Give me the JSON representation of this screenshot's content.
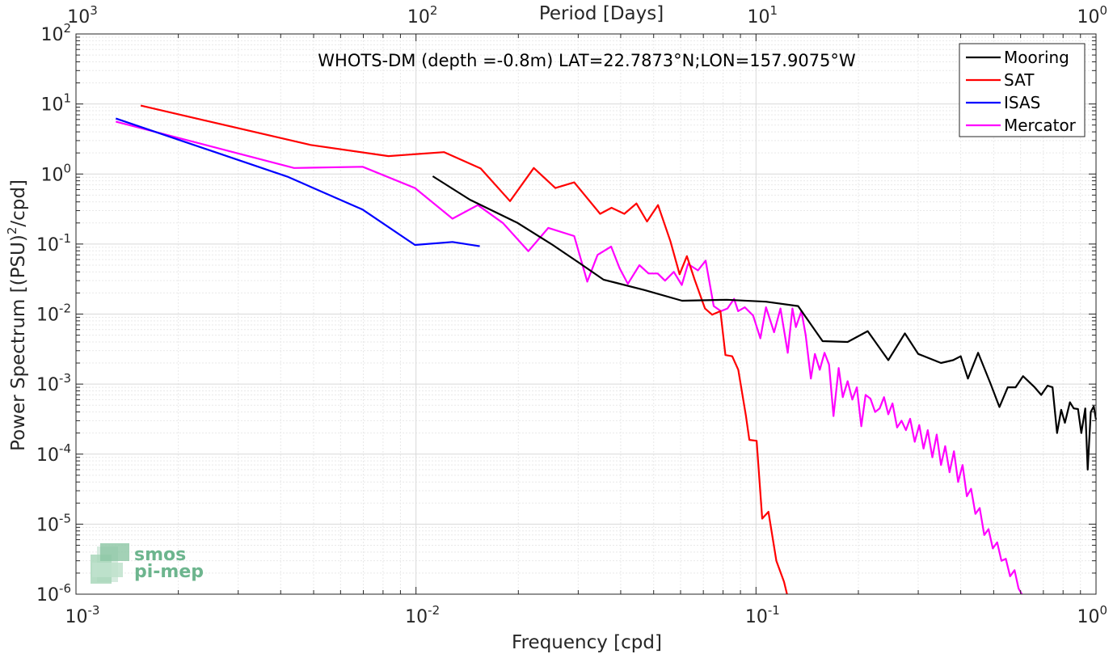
{
  "chart_data": {
    "type": "line",
    "title": "WHOTS-DM (depth =-0.8m) LAT=22.7873°N;LON=157.9075°W",
    "xlabel": "Frequency [cpd]",
    "ylabel": "Power Spectrum [(PSU)",
    "ylabel_sup": "2",
    "ylabel_tail": "/cpd]",
    "top_xlabel": "Period [Days]",
    "xscale": "log",
    "yscale": "log",
    "xlim": [
      0.001,
      1
    ],
    "ylim": [
      1e-06,
      100
    ],
    "grid": true,
    "legend_position": "top-right",
    "x_ticks": [
      {
        "base": "10",
        "exp": "-3",
        "value": 0.001
      },
      {
        "base": "10",
        "exp": "-2",
        "value": 0.01
      },
      {
        "base": "10",
        "exp": "-1",
        "value": 0.1
      },
      {
        "base": "10",
        "exp": "0",
        "value": 1
      }
    ],
    "top_ticks": [
      {
        "base": "10",
        "exp": "3",
        "value": 0.001
      },
      {
        "base": "10",
        "exp": "2",
        "value": 0.01
      },
      {
        "base": "10",
        "exp": "1",
        "value": 0.1
      },
      {
        "base": "10",
        "exp": "0",
        "value": 1
      }
    ],
    "y_ticks": [
      {
        "base": "10",
        "exp": "2",
        "value": 100
      },
      {
        "base": "10",
        "exp": "1",
        "value": 10
      },
      {
        "base": "10",
        "exp": "0",
        "value": 1
      },
      {
        "base": "10",
        "exp": "-1",
        "value": 0.1
      },
      {
        "base": "10",
        "exp": "-2",
        "value": 0.01
      },
      {
        "base": "10",
        "exp": "-3",
        "value": 0.001
      },
      {
        "base": "10",
        "exp": "-4",
        "value": 0.0001
      },
      {
        "base": "10",
        "exp": "-5",
        "value": 1e-05
      },
      {
        "base": "10",
        "exp": "-6",
        "value": 1e-06
      }
    ],
    "series": [
      {
        "name": "Mooring",
        "color": "#000000",
        "points": [
          [
            0.0112,
            0.93
          ],
          [
            0.0144,
            0.43
          ],
          [
            0.0199,
            0.2
          ],
          [
            0.025,
            0.1
          ],
          [
            0.03,
            0.055
          ],
          [
            0.0356,
            0.031
          ],
          [
            0.047,
            0.022
          ],
          [
            0.0606,
            0.0155
          ],
          [
            0.082,
            0.016
          ],
          [
            0.107,
            0.015
          ],
          [
            0.133,
            0.013
          ],
          [
            0.157,
            0.0041
          ],
          [
            0.186,
            0.004
          ],
          [
            0.213,
            0.0057
          ],
          [
            0.245,
            0.0022
          ],
          [
            0.274,
            0.0053
          ],
          [
            0.3,
            0.0027
          ],
          [
            0.35,
            0.002
          ],
          [
            0.38,
            0.0022
          ],
          [
            0.4,
            0.0025
          ],
          [
            0.42,
            0.0012
          ],
          [
            0.45,
            0.0028
          ],
          [
            0.49,
            0.001
          ],
          [
            0.52,
            0.00047
          ],
          [
            0.55,
            0.0009
          ],
          [
            0.58,
            0.0009
          ],
          [
            0.61,
            0.0013
          ],
          [
            0.66,
            0.0009
          ],
          [
            0.69,
            0.0007
          ],
          [
            0.72,
            0.00095
          ],
          [
            0.745,
            0.0009
          ],
          [
            0.768,
            0.0002
          ],
          [
            0.79,
            0.00043
          ],
          [
            0.81,
            0.00028
          ],
          [
            0.838,
            0.00055
          ],
          [
            0.86,
            0.00045
          ],
          [
            0.885,
            0.00044
          ],
          [
            0.905,
            0.0002
          ],
          [
            0.93,
            0.00045
          ],
          [
            0.945,
            6e-05
          ],
          [
            0.965,
            0.0004
          ],
          [
            0.985,
            0.00048
          ],
          [
            1.0,
            0.00031
          ]
        ]
      },
      {
        "name": "SAT",
        "color": "#ff0000",
        "points": [
          [
            0.00155,
            9.5
          ],
          [
            0.0049,
            2.6
          ],
          [
            0.0083,
            1.8
          ],
          [
            0.0121,
            2.05
          ],
          [
            0.0155,
            1.2
          ],
          [
            0.0189,
            0.41
          ],
          [
            0.0222,
            1.22
          ],
          [
            0.0257,
            0.63
          ],
          [
            0.0292,
            0.76
          ],
          [
            0.0348,
            0.27
          ],
          [
            0.0376,
            0.33
          ],
          [
            0.041,
            0.27
          ],
          [
            0.0445,
            0.38
          ],
          [
            0.0478,
            0.21
          ],
          [
            0.0515,
            0.36
          ],
          [
            0.056,
            0.11
          ],
          [
            0.0596,
            0.037
          ],
          [
            0.0626,
            0.067
          ],
          [
            0.066,
            0.031
          ],
          [
            0.0708,
            0.012
          ],
          [
            0.0743,
            0.0098
          ],
          [
            0.0786,
            0.011
          ],
          [
            0.0813,
            0.0026
          ],
          [
            0.0851,
            0.0025
          ],
          [
            0.0887,
            0.0016
          ],
          [
            0.0934,
            0.00035
          ],
          [
            0.0956,
            0.00016
          ],
          [
            0.1004,
            0.000155
          ],
          [
            0.1043,
            1.2e-05
          ],
          [
            0.1088,
            1.5e-05
          ],
          [
            0.1148,
            3e-06
          ],
          [
            0.1209,
            1.5e-06
          ],
          [
            0.1234,
            8e-07
          ]
        ]
      },
      {
        "name": "ISAS",
        "color": "#0000ff",
        "points": [
          [
            0.00131,
            6.2
          ],
          [
            0.00418,
            0.92
          ],
          [
            0.00697,
            0.31
          ],
          [
            0.00993,
            0.097
          ],
          [
            0.0128,
            0.107
          ],
          [
            0.0154,
            0.093
          ]
        ]
      },
      {
        "name": "Mercator",
        "color": "#ff00ff",
        "points": [
          [
            0.00131,
            5.6
          ],
          [
            0.00438,
            1.22
          ],
          [
            0.00697,
            1.27
          ],
          [
            0.00993,
            0.63
          ],
          [
            0.0128,
            0.23
          ],
          [
            0.0152,
            0.36
          ],
          [
            0.018,
            0.2
          ],
          [
            0.0214,
            0.079
          ],
          [
            0.0245,
            0.17
          ],
          [
            0.0292,
            0.13
          ],
          [
            0.0319,
            0.029
          ],
          [
            0.0342,
            0.07
          ],
          [
            0.0375,
            0.092
          ],
          [
            0.0397,
            0.045
          ],
          [
            0.042,
            0.027
          ],
          [
            0.0454,
            0.05
          ],
          [
            0.0483,
            0.038
          ],
          [
            0.0514,
            0.038
          ],
          [
            0.054,
            0.03
          ],
          [
            0.0573,
            0.04
          ],
          [
            0.0605,
            0.026
          ],
          [
            0.0631,
            0.052
          ],
          [
            0.0675,
            0.042
          ],
          [
            0.0711,
            0.058
          ],
          [
            0.0751,
            0.013
          ],
          [
            0.0789,
            0.011
          ],
          [
            0.0824,
            0.012
          ],
          [
            0.0862,
            0.0165
          ],
          [
            0.0886,
            0.011
          ],
          [
            0.0927,
            0.0125
          ],
          [
            0.0981,
            0.0095
          ],
          [
            0.103,
            0.0045
          ],
          [
            0.107,
            0.0125
          ],
          [
            0.113,
            0.0055
          ],
          [
            0.118,
            0.012
          ],
          [
            0.124,
            0.0028
          ],
          [
            0.128,
            0.012
          ],
          [
            0.131,
            0.0065
          ],
          [
            0.136,
            0.011
          ],
          [
            0.14,
            0.005
          ],
          [
            0.145,
            0.0012
          ],
          [
            0.149,
            0.0027
          ],
          [
            0.154,
            0.0016
          ],
          [
            0.159,
            0.0028
          ],
          [
            0.164,
            0.0019
          ],
          [
            0.169,
            0.00035
          ],
          [
            0.175,
            0.0017
          ],
          [
            0.18,
            0.00065
          ],
          [
            0.186,
            0.0011
          ],
          [
            0.192,
            0.0006
          ],
          [
            0.198,
            0.0009
          ],
          [
            0.204,
            0.00025
          ],
          [
            0.21,
            0.0007
          ],
          [
            0.217,
            0.00062
          ],
          [
            0.224,
            0.0004
          ],
          [
            0.231,
            0.00045
          ],
          [
            0.238,
            0.00065
          ],
          [
            0.245,
            0.00037
          ],
          [
            0.252,
            0.00053
          ],
          [
            0.26,
            0.00024
          ],
          [
            0.268,
            0.0003
          ],
          [
            0.276,
            0.00022
          ],
          [
            0.284,
            0.00032
          ],
          [
            0.293,
            0.00015
          ],
          [
            0.302,
            0.00026
          ],
          [
            0.311,
            0.00012
          ],
          [
            0.32,
            0.00022
          ],
          [
            0.33,
            9e-05
          ],
          [
            0.34,
            0.00019
          ],
          [
            0.35,
            7e-05
          ],
          [
            0.36,
            0.00013
          ],
          [
            0.371,
            5.5e-05
          ],
          [
            0.382,
            0.00011
          ],
          [
            0.393,
            4e-05
          ],
          [
            0.405,
            7e-05
          ],
          [
            0.417,
            2.5e-05
          ],
          [
            0.429,
            3.2e-05
          ],
          [
            0.442,
            1.4e-05
          ],
          [
            0.455,
            1.7e-05
          ],
          [
            0.469,
            7e-06
          ],
          [
            0.483,
            8.5e-06
          ],
          [
            0.497,
            4.5e-06
          ],
          [
            0.512,
            5.5e-06
          ],
          [
            0.527,
            3e-06
          ],
          [
            0.543,
            3.2e-06
          ],
          [
            0.559,
            1.8e-06
          ],
          [
            0.576,
            2.2e-06
          ],
          [
            0.592,
            1.2e-06
          ],
          [
            0.605,
            9e-07
          ]
        ]
      }
    ]
  },
  "logo": {
    "line1": "smos",
    "line2": "pi-mep"
  }
}
